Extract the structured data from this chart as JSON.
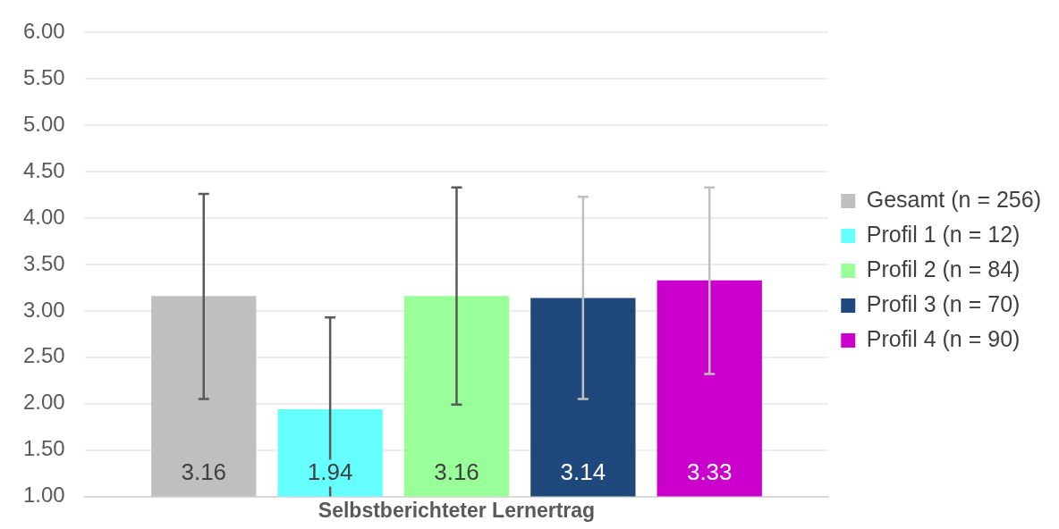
{
  "chart_data": {
    "type": "bar",
    "categories": [
      "Selbstberichteter Lernertrag"
    ],
    "series": [
      {
        "name": "Gesamt (n = 256)",
        "color": "#bfbfbf",
        "values": [
          3.16
        ],
        "errors": [
          [
            2.05,
            4.26
          ]
        ]
      },
      {
        "name": "Profil 1 (n = 12)",
        "color": "#66ffff",
        "values": [
          1.94
        ],
        "errors": [
          [
            1.0,
            2.93
          ]
        ]
      },
      {
        "name": "Profil 2 (n = 84)",
        "color": "#99ff99",
        "values": [
          3.16
        ],
        "errors": [
          [
            1.99,
            4.33
          ]
        ]
      },
      {
        "name": "Profil 3 (n = 70)",
        "color": "#1f497d",
        "values": [
          3.14
        ],
        "errors": [
          [
            2.05,
            4.23
          ]
        ]
      },
      {
        "name": "Profil 4 (n = 90)",
        "color": "#cc00cc",
        "values": [
          3.33
        ],
        "errors": [
          [
            2.32,
            4.33
          ]
        ]
      }
    ],
    "ylim": [
      1,
      6
    ],
    "yticks": [
      {
        "value": 1,
        "label": "1.00"
      },
      {
        "value": 1.5,
        "label": "1.50"
      },
      {
        "value": 2,
        "label": "2.00"
      },
      {
        "value": 2.5,
        "label": "2.50"
      },
      {
        "value": 3,
        "label": "3.00"
      },
      {
        "value": 3.5,
        "label": "3.50"
      },
      {
        "value": 4,
        "label": "4.00"
      },
      {
        "value": 4.5,
        "label": "4.50"
      },
      {
        "value": 5,
        "label": "5.00"
      },
      {
        "value": 5.5,
        "label": "5.50"
      },
      {
        "value": 6,
        "label": "6.00"
      }
    ],
    "grid": "y",
    "legend": "right",
    "data_labels": true
  }
}
